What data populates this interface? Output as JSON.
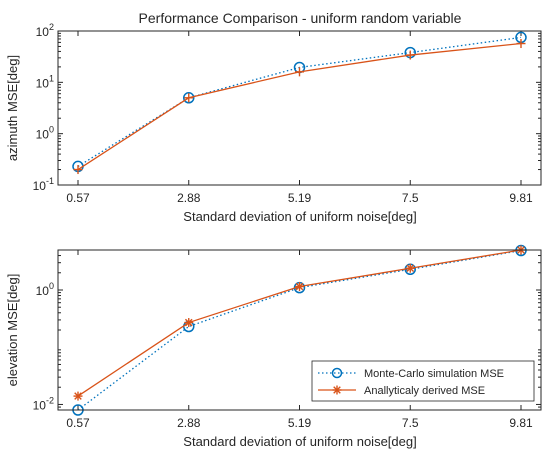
{
  "chart_data": [
    {
      "type": "line",
      "title": "Performance Comparison  - uniform random variable",
      "xlabel": "Standard deviation of uniform noise[deg]",
      "ylabel": "azimuth MSE[deg]",
      "yscale": "log",
      "categories": [
        "0.57",
        "2.88",
        "5.19",
        "7.5",
        "9.81"
      ],
      "ylim": [
        0.1,
        100
      ],
      "yticks": [
        0.1,
        1,
        10,
        100
      ],
      "ytick_labels": [
        {
          "base": "10",
          "exp": "-1"
        },
        {
          "base": "10",
          "exp": "0"
        },
        {
          "base": "10",
          "exp": "1"
        },
        {
          "base": "10",
          "exp": "2"
        }
      ],
      "legend": false,
      "series": [
        {
          "name": "Monte-Carlo simulation MSE",
          "values": [
            0.23,
            5.0,
            19.5,
            38,
            75
          ],
          "color": "#0072BD",
          "marker": "circle",
          "line": "dotted"
        },
        {
          "name": "Anallyticaly derived MSE",
          "values": [
            0.2,
            5.0,
            16,
            34,
            57
          ],
          "color": "#D95319",
          "marker": "plus",
          "line": "solid"
        }
      ]
    },
    {
      "type": "line",
      "xlabel": "Standard deviation of uniform noise[deg]",
      "ylabel": "elevation MSE[deg]",
      "yscale": "log",
      "categories": [
        "0.57",
        "2.88",
        "5.19",
        "7.5",
        "9.81"
      ],
      "ylim": [
        0.008,
        5
      ],
      "yticks": [
        0.01,
        1
      ],
      "ytick_labels": [
        {
          "base": "10",
          "exp": "-2"
        },
        {
          "base": "10",
          "exp": "0"
        }
      ],
      "legend": true,
      "legend_position": "bottom-right",
      "series": [
        {
          "name": "Monte-Carlo simulation MSE",
          "values": [
            0.008,
            0.23,
            1.1,
            2.3,
            4.9
          ],
          "color": "#0072BD",
          "marker": "circle",
          "line": "dotted"
        },
        {
          "name": "Anallyticaly derived MSE",
          "values": [
            0.014,
            0.27,
            1.15,
            2.4,
            5.0
          ],
          "color": "#D95319",
          "marker": "star",
          "line": "solid"
        }
      ]
    }
  ]
}
